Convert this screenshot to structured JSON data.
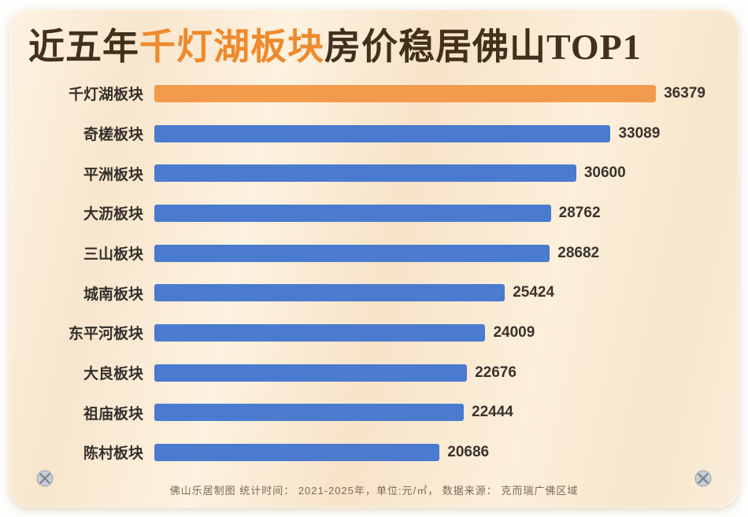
{
  "title": {
    "part1": "近五年",
    "highlight": "千灯湖板块",
    "part2": "房价稳居佛山TOP1"
  },
  "chart_data": {
    "type": "bar",
    "orientation": "horizontal",
    "title": "近五年千灯湖板块房价稳居佛山TOP1",
    "categories": [
      "千灯湖板块",
      "奇槎板块",
      "平洲板块",
      "大沥板块",
      "三山板块",
      "城南板块",
      "东平河板块",
      "大良板块",
      "祖庙板块",
      "陈村板块"
    ],
    "values": [
      36379,
      33089,
      30600,
      28762,
      28682,
      25424,
      24009,
      22676,
      22444,
      20686
    ],
    "unit": "元/㎡",
    "xlim": [
      0,
      41000
    ],
    "grid": false,
    "legend": false,
    "highlight_index": 0,
    "highlight_color": "#f29b4d",
    "bar_color": "#4a7bce"
  },
  "footer": {
    "text": "佛山乐居制图  统计时间： 2021-2025年，单位:元/㎡， 数据来源： 克而瑞广佛区域"
  },
  "colors": {
    "title_text": "#43301c",
    "title_highlight": "#ee8a2d",
    "card_background": "#fbeedb",
    "value_text": "#3a332c",
    "footer_text": "#7b6a58"
  }
}
